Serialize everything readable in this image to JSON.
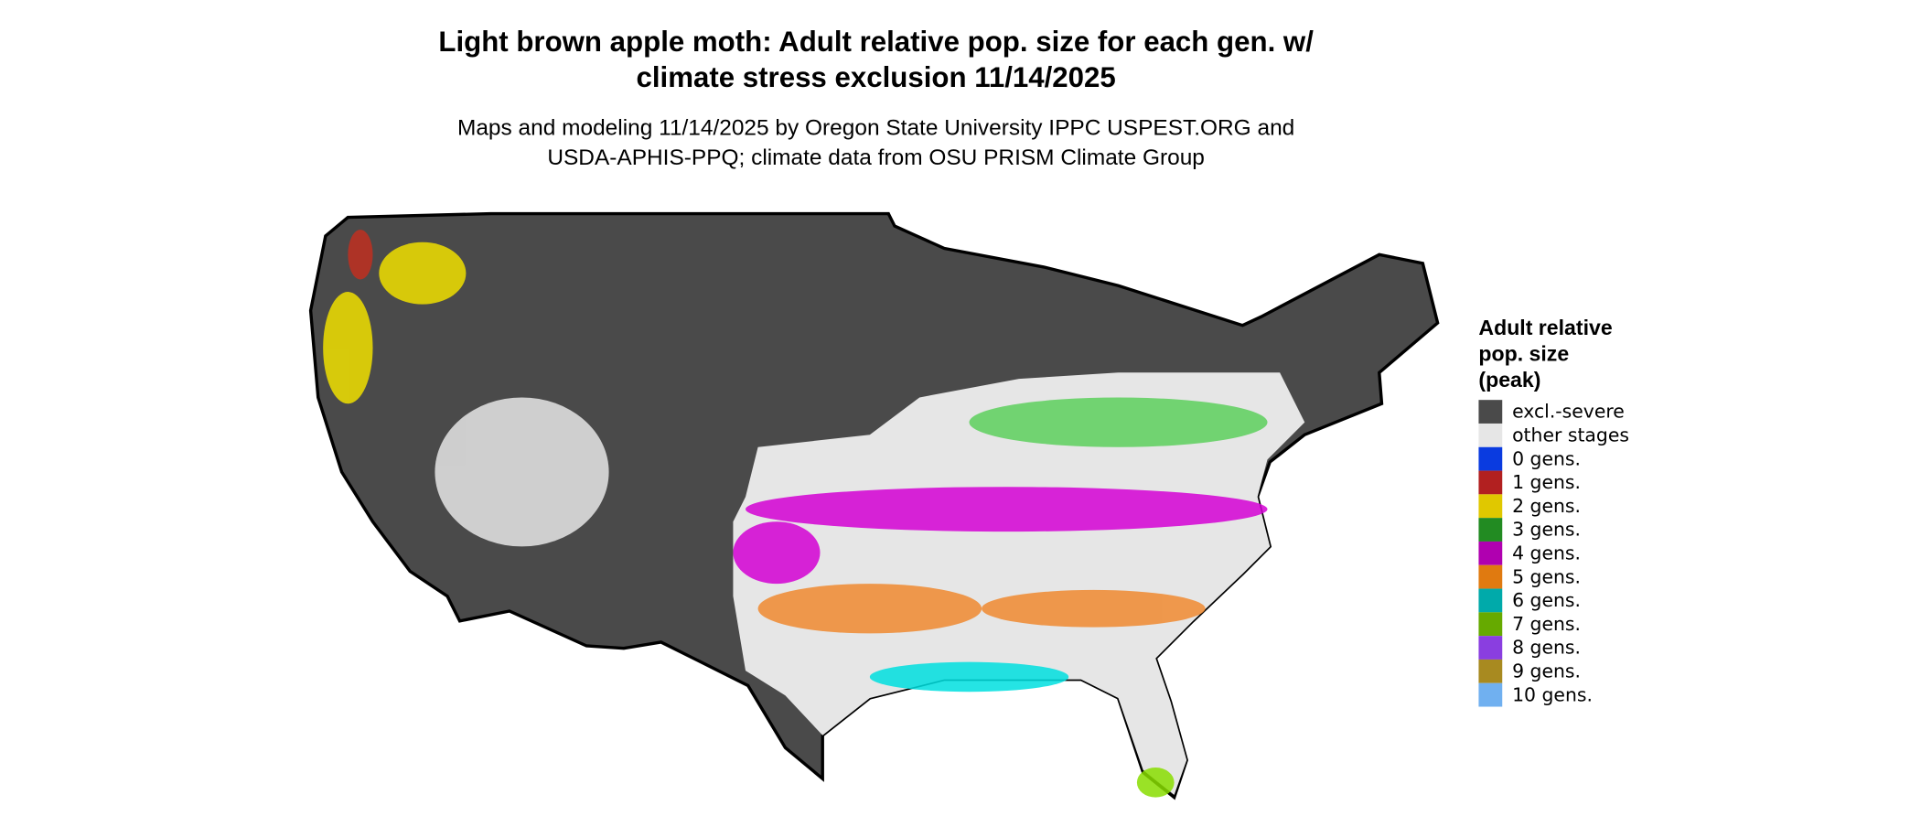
{
  "header": {
    "title": [
      "Light brown apple moth: Adult relative pop. size for each gen. w/",
      "climate stress exclusion 11/14/2025"
    ],
    "subtitle": [
      "Maps and modeling 11/14/2025 by Oregon State University IPPC USPEST.ORG and",
      "USDA-APHIS-PPQ; climate data from OSU PRISM Climate Group"
    ]
  },
  "legend": {
    "title": [
      "Adult relative",
      "pop. size",
      "(peak)"
    ],
    "items": [
      {
        "label": "excl.-severe",
        "color": "#4a4a4a"
      },
      {
        "label": "other stages",
        "color": "#e6e6e6"
      },
      {
        "label": "0 gens.",
        "color": "#0a3be0"
      },
      {
        "label": "1 gens.",
        "color": "#b22020"
      },
      {
        "label": "2 gens.",
        "color": "#e0c800"
      },
      {
        "label": "3 gens.",
        "color": "#228b22"
      },
      {
        "label": "4 gens.",
        "color": "#b000b0"
      },
      {
        "label": "5 gens.",
        "color": "#e07a10"
      },
      {
        "label": "6 gens.",
        "color": "#00aaaa"
      },
      {
        "label": "7 gens.",
        "color": "#66aa00"
      },
      {
        "label": "8 gens.",
        "color": "#8a3ee0"
      },
      {
        "label": "9 gens.",
        "color": "#a88a20"
      },
      {
        "label": "10 gens.",
        "color": "#70b0f0"
      }
    ]
  }
}
